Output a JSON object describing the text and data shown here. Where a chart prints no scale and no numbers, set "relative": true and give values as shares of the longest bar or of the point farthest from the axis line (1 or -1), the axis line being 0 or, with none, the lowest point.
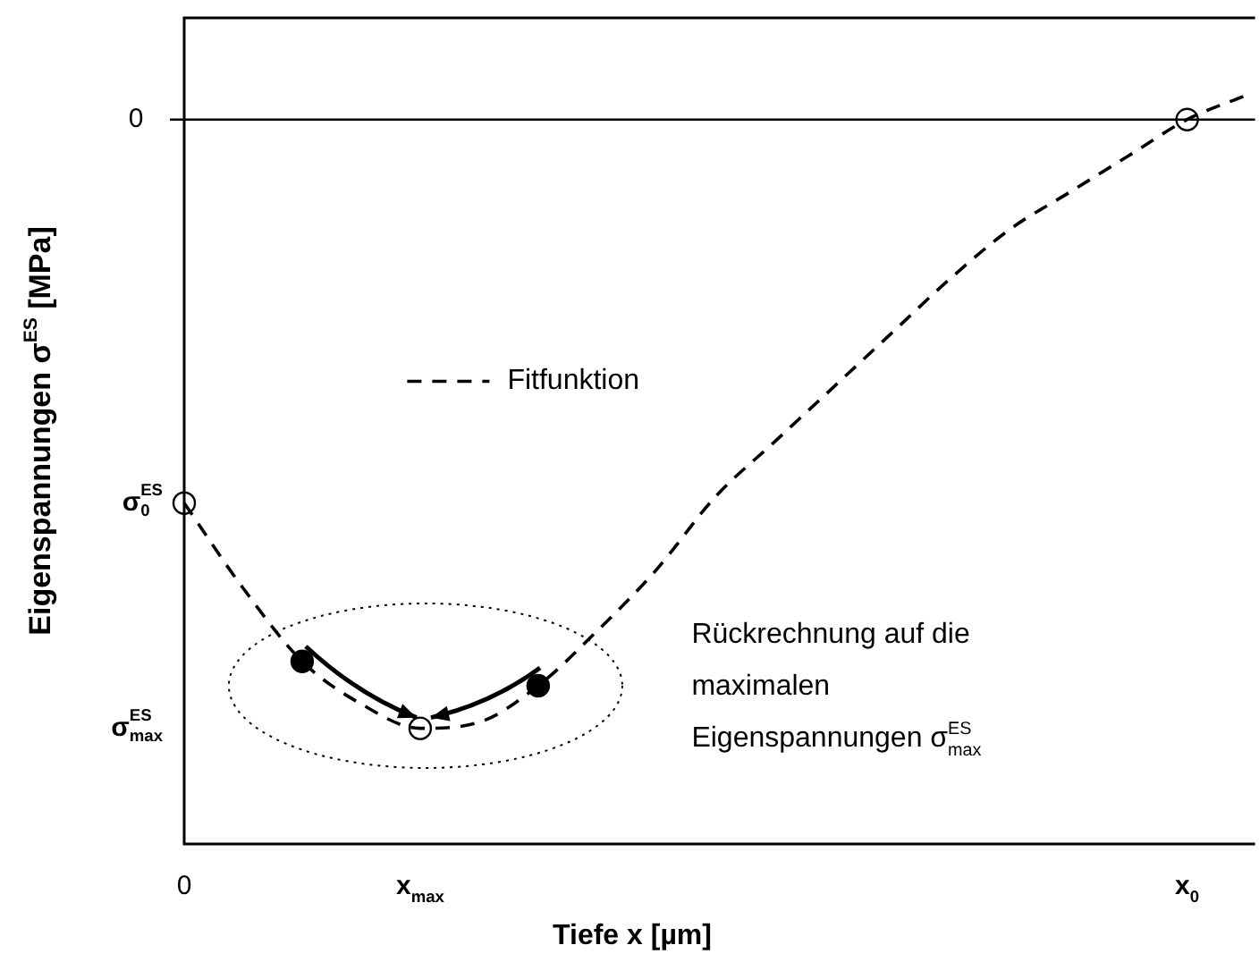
{
  "chart_data": {
    "type": "line",
    "relative": true,
    "xlabel": "Tiefe x [µm]",
    "ylabel": "Eigenspannungen σ$^{ES}$ [MPa]",
    "categories": [
      "0",
      null,
      null,
      null,
      "x$_{max}$",
      null,
      null,
      null,
      null,
      null,
      null,
      null,
      null,
      null,
      null,
      null,
      null,
      "x$_{0}$",
      null
    ],
    "series": [
      {
        "name": "Fitfunktion",
        "color": "#000000",
        "line_style": "dashed",
        "marker": "none",
        "values": [
          -0.63,
          -0.77,
          -0.89,
          -0.96,
          -1,
          -0.99,
          -0.93,
          -0.84,
          -0.74,
          -0.62,
          -0.53,
          -0.44,
          -0.35,
          -0.26,
          -0.18,
          -0.12,
          -0.06,
          0,
          0.04
        ]
      },
      {
        "type": "scatter",
        "color": "#ffffff",
        "marker": "circle",
        "values": [
          -0.63,
          null,
          null,
          null,
          -1,
          null,
          null,
          null,
          null,
          null,
          null,
          null,
          null,
          null,
          null,
          null,
          null,
          0,
          null
        ]
      },
      {
        "type": "scatter",
        "color": "#000000",
        "marker": "circle",
        "values": [
          null,
          null,
          -0.89,
          null,
          null,
          null,
          -0.93,
          null,
          null,
          null,
          null,
          null,
          null,
          null,
          null,
          null,
          null,
          null,
          null
        ]
      }
    ],
    "ref_lines": [
      {
        "axis": "y",
        "value": 0,
        "label": "0",
        "color": "#000000"
      }
    ],
    "annotations": [
      "σ$_{0}$$^{ES}$",
      "σ$_{max}$$^{ES}$",
      "Rückrechnung auf die maximalen Eigenspannungen σ$_{max}$$^{ES}$"
    ],
    "legend": "center"
  }
}
